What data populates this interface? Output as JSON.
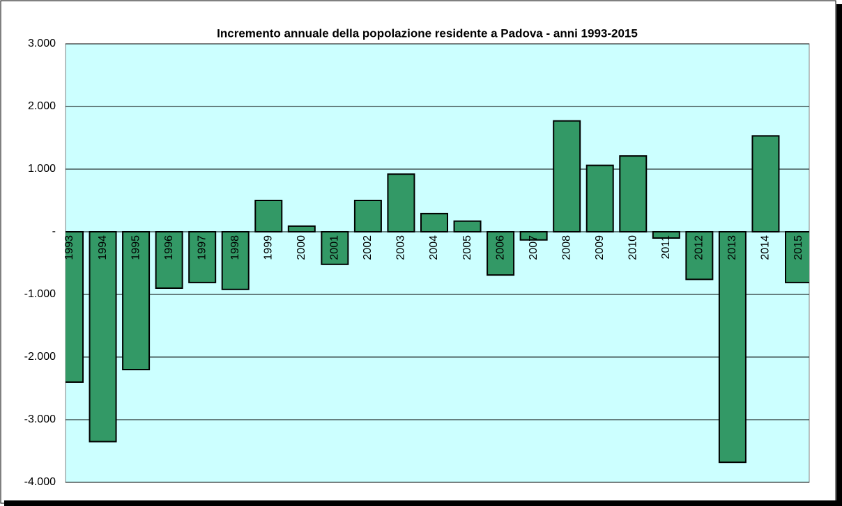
{
  "chart_data": {
    "type": "bar",
    "title": "Incremento annuale della popolazione residente a Padova - anni 1993-2015",
    "categories": [
      "1993",
      "1994",
      "1995",
      "1996",
      "1997",
      "1998",
      "1999",
      "2000",
      "2001",
      "2002",
      "2003",
      "2004",
      "2005",
      "2006",
      "2007",
      "2008",
      "2009",
      "2010",
      "2011",
      "2012",
      "2013",
      "2014",
      "2015"
    ],
    "values": [
      -2400,
      -3350,
      -2200,
      -900,
      -810,
      -920,
      500,
      90,
      -520,
      500,
      920,
      290,
      170,
      -690,
      -130,
      1770,
      1060,
      1210,
      -100,
      -760,
      -3680,
      1530,
      -810
    ],
    "color": "#339966",
    "ylim": [
      -4000,
      3000
    ],
    "yticks": [
      {
        "value": -4000,
        "label": "-4.000"
      },
      {
        "value": -3000,
        "label": "-3.000"
      },
      {
        "value": -2000,
        "label": "-2.000"
      },
      {
        "value": -1000,
        "label": "-1.000"
      },
      {
        "value": 0,
        "label": "-"
      },
      {
        "value": 1000,
        "label": "1.000"
      },
      {
        "value": 2000,
        "label": "2.000"
      },
      {
        "value": 3000,
        "label": "3.000"
      }
    ],
    "grid": true
  }
}
